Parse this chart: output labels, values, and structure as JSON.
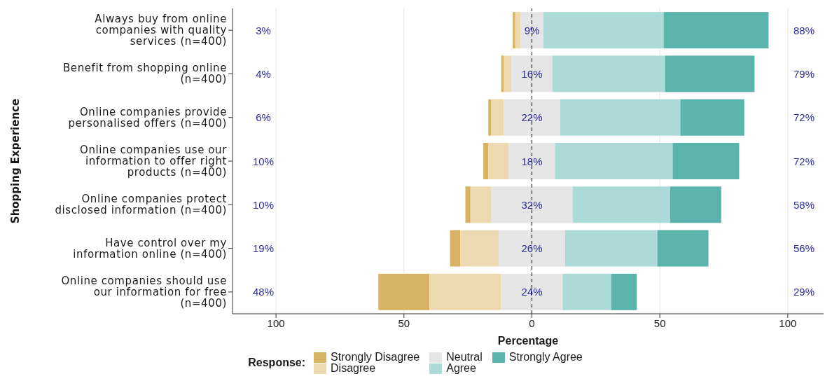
{
  "chart_data": {
    "type": "bar",
    "orientation": "horizontal",
    "categories": [
      "Always buy from online companies with quality services (n=400)",
      "Benefit from shopping online (n=400)",
      "Online companies provide personalised offers (n=400)",
      "Online companies use our information to offer right products (n=400)",
      "Online companies protect disclosed information (n=400)",
      "Have control over my information online (n=400)",
      "Online companies should use our information for free (n=400)"
    ],
    "series": [
      {
        "name": "Strongly Disagree",
        "color": "#d8b365",
        "values": [
          1,
          1,
          1,
          2,
          2,
          4,
          20
        ],
        "base": [
          -7.5,
          -12,
          -17,
          -19,
          -26,
          -32,
          -60
        ]
      },
      {
        "name": "Disagree",
        "color": "#ecd9b0",
        "values": [
          2,
          3,
          5,
          8,
          8,
          15,
          28
        ],
        "base": [
          -6.5,
          -11,
          -16,
          -17,
          -24,
          -28,
          -40
        ]
      },
      {
        "name": "Neutral",
        "color": "#e5e5e5",
        "values": [
          9,
          16,
          22,
          18,
          32,
          26,
          24
        ],
        "base": [
          -4.5,
          -8,
          -11,
          -9,
          -16,
          -13,
          -12
        ],
        "value_labels": [
          "9%",
          "16%",
          "22%",
          "18%",
          "32%",
          "26%",
          "24%"
        ]
      },
      {
        "name": "Agree",
        "color": "#acdad6",
        "values": [
          47,
          44,
          47,
          46,
          38,
          36,
          19
        ],
        "base": [
          4.5,
          8,
          11,
          9,
          16,
          13,
          12
        ]
      },
      {
        "name": "Strongly Agree",
        "color": "#5ab4ac",
        "values": [
          41,
          35,
          25,
          26,
          20,
          20,
          10
        ],
        "base": [
          51.5,
          52,
          58,
          55,
          54,
          49,
          31
        ]
      }
    ],
    "xlim": [
      -117,
      114
    ],
    "xticks": [
      {
        "value": -100,
        "label": "100"
      },
      {
        "value": -50,
        "label": "50"
      },
      0,
      50,
      100
    ],
    "xlabel": "Percentage",
    "ylabel": "Shopping Experience",
    "legend_title": "Response:",
    "legend": "bottom",
    "grid": "x",
    "ref_lines": [
      {
        "axis": "x",
        "value": 0,
        "color": "#000000",
        "line_style": "dashed"
      }
    ],
    "annotations": [
      "3%",
      "4%",
      "6%",
      "10%",
      "10%",
      "19%",
      "48%",
      "88%",
      "79%",
      "72%",
      "72%",
      "58%",
      "56%",
      "29%"
    ]
  }
}
